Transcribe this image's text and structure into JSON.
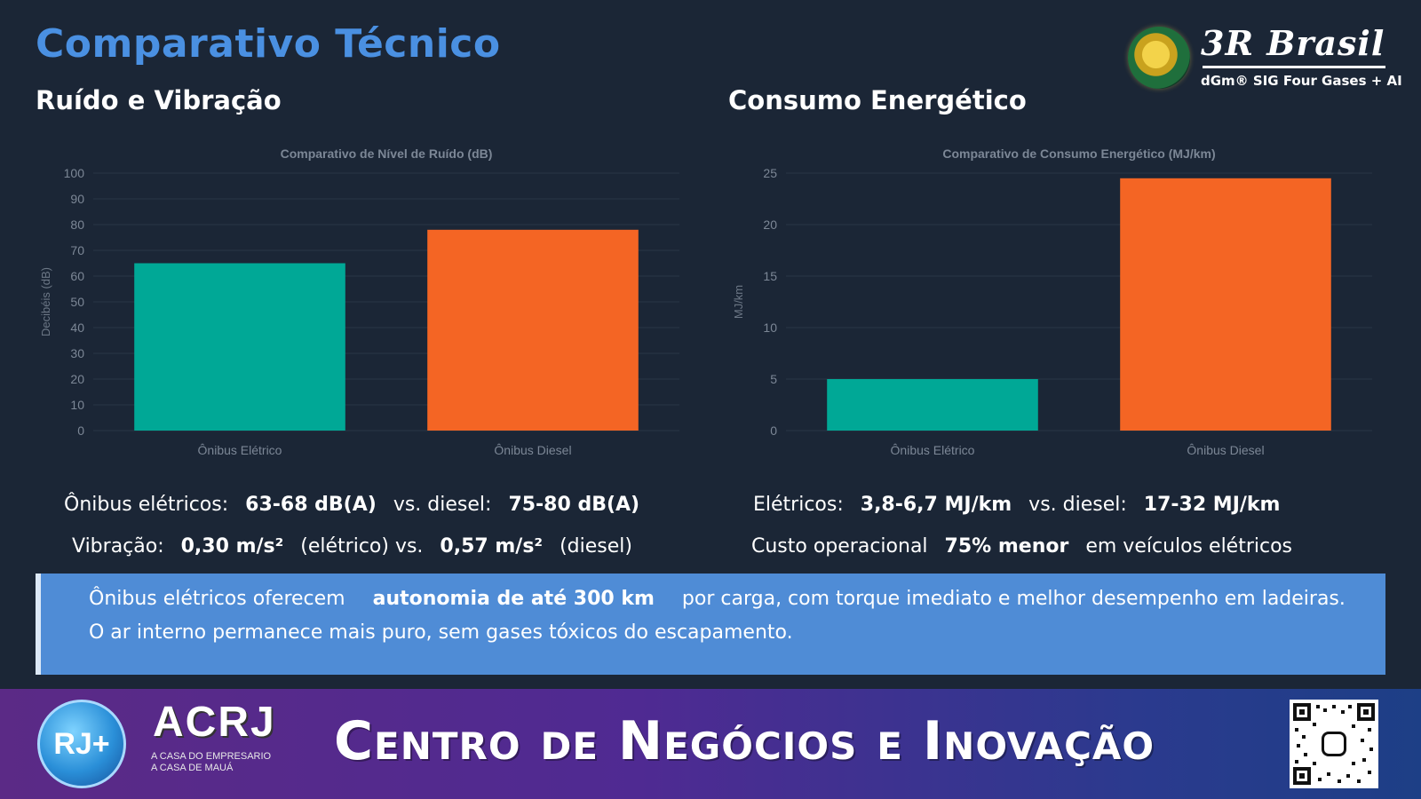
{
  "header": {
    "title": "Comparativo Técnico",
    "left_section": "Ruído e Vibração",
    "right_section": "Consumo Energético"
  },
  "logo": {
    "name": "3R Brasil",
    "tagline": "dGm® SIG Four Gases + AI"
  },
  "chart_data": [
    {
      "type": "bar",
      "title": "Comparativo de Nível de Ruído (dB)",
      "categories": [
        "Ônibus Elétrico",
        "Ônibus Diesel"
      ],
      "values": [
        65,
        78
      ],
      "colors": [
        "#00a896",
        "#f46524"
      ],
      "xlabel": "",
      "ylabel": "Decibéis (dB)",
      "ylim": [
        0,
        100
      ],
      "yticks": [
        0,
        10,
        20,
        30,
        40,
        50,
        60,
        70,
        80,
        90,
        100
      ],
      "grid": true,
      "legend": "none"
    },
    {
      "type": "bar",
      "title": "Comparativo de Consumo Energético (MJ/km)",
      "categories": [
        "Ônibus Elétrico",
        "Ônibus Diesel"
      ],
      "values": [
        5,
        24.5
      ],
      "colors": [
        "#00a896",
        "#f46524"
      ],
      "xlabel": "",
      "ylabel": "MJ/km",
      "ylim": [
        0,
        25
      ],
      "yticks": [
        0,
        5,
        10,
        15,
        20,
        25
      ],
      "grid": true,
      "legend": "none"
    }
  ],
  "noise_stats": {
    "line1_label": "Ônibus elétricos:",
    "line1_value1": "63-68 dB(A)",
    "line1_vs": "vs. diesel:",
    "line1_value2": "75-80 dB(A)",
    "line2_label": "Vibração:",
    "line2_value1": "0,30 m/s²",
    "line2_mid": "(elétrico) vs.",
    "line2_value2": "0,57 m/s²",
    "line2_end": "(diesel)"
  },
  "energy_stats": {
    "line1_label": "Elétricos:",
    "line1_value1": "3,8-6,7 MJ/km",
    "line1_vs": "vs. diesel:",
    "line1_value2": "17-32 MJ/km",
    "line2_label": "Custo operacional",
    "line2_value": "75% menor",
    "line2_end": "em veículos elétricos"
  },
  "info": {
    "line1_start": "Ônibus elétricos oferecem",
    "line1_bold": "autonomia de até 300 km",
    "line1_end": "por carga, com torque imediato e melhor desempenho em ladeiras.",
    "line2": "O ar interno permanece mais puro, sem gases tóxicos do escapamento."
  },
  "footer": {
    "badge": "RJ+",
    "org_name": "ACRJ",
    "org_tag1": "A CASA DO EMPRESARIO",
    "org_tag2": "A CASA DE MAUÁ",
    "title": "Centro de Negócios e Inovação",
    "qr_icon": "instagram-icon"
  }
}
